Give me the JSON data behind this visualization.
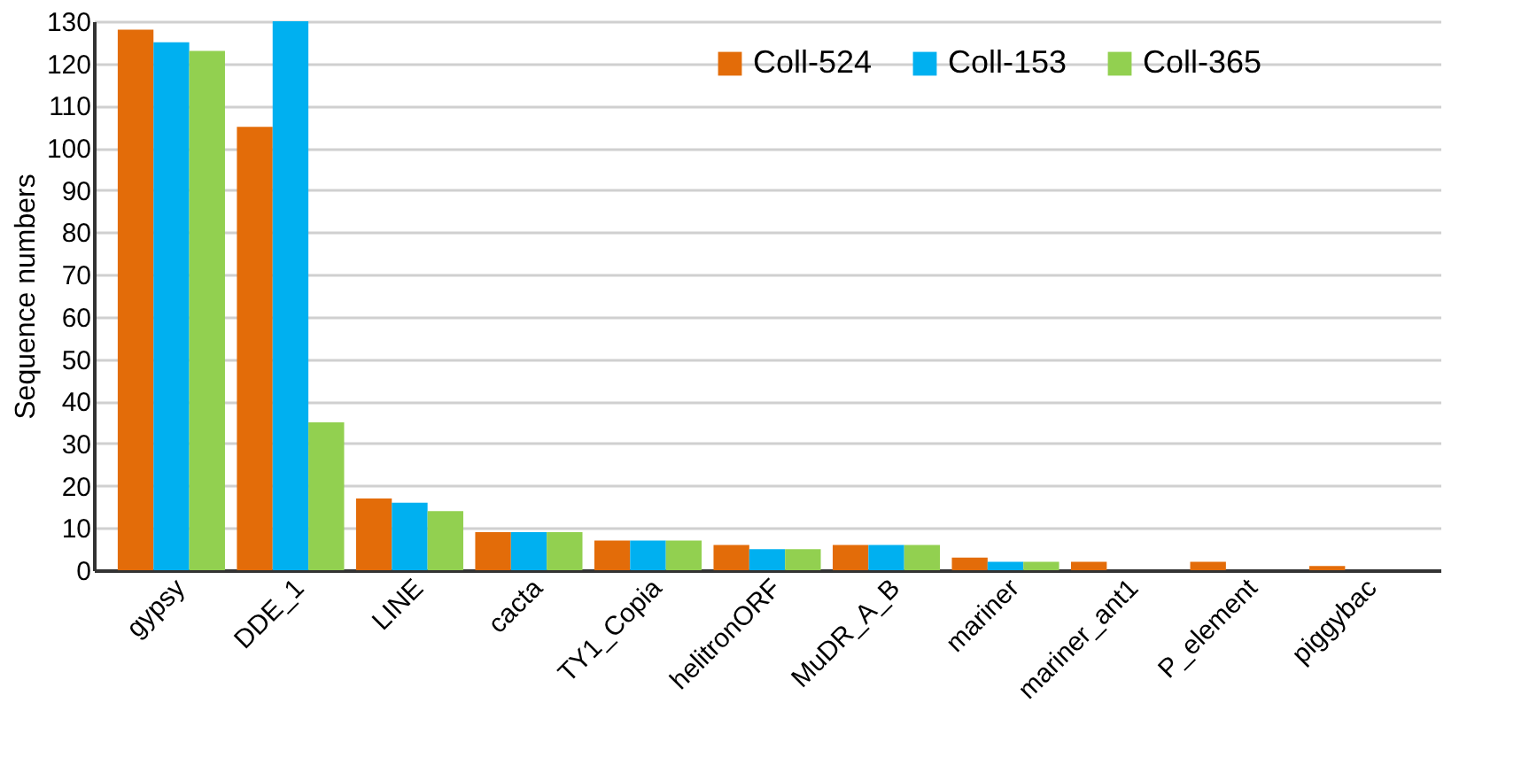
{
  "chart_data": {
    "type": "bar",
    "ylabel": "Sequence numbers",
    "categories": [
      "gypsy",
      "DDE_1",
      "LINE",
      "cacta",
      "TY1_Copia",
      "helitronORF",
      "MuDR_A_B",
      "mariner",
      "mariner_ant1",
      "P_element",
      "piggybac"
    ],
    "series": [
      {
        "name": "Coll-524",
        "color": "#e36c09",
        "values": [
          128,
          105,
          17,
          9,
          7,
          6,
          6,
          3,
          2,
          2,
          1
        ]
      },
      {
        "name": "Coll-153",
        "color": "#00b0f0",
        "values": [
          125,
          130,
          16,
          9,
          7,
          5,
          6,
          2,
          0,
          0,
          0
        ]
      },
      {
        "name": "Coll-365",
        "color": "#92d050",
        "values": [
          123,
          35,
          14,
          9,
          7,
          5,
          6,
          2,
          0,
          0,
          0
        ]
      }
    ],
    "ylim": [
      0,
      130
    ],
    "yticks": [
      0,
      10,
      20,
      30,
      40,
      50,
      60,
      70,
      80,
      90,
      100,
      110,
      120,
      130
    ],
    "grid": "y",
    "legend": "top right"
  }
}
